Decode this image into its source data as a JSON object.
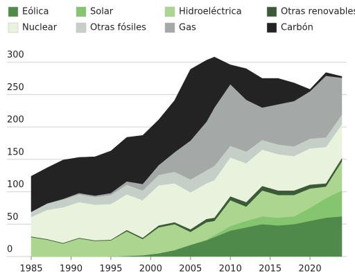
{
  "chart_data": {
    "type": "stacked_area",
    "x": [
      1985,
      1987,
      1989,
      1991,
      1993,
      1995,
      1997,
      1999,
      2001,
      2003,
      2005,
      2007,
      2008,
      2010,
      2012,
      2014,
      2016,
      2018,
      2020,
      2022,
      2024
    ],
    "series": [
      {
        "name": "Eólica",
        "color": "#4f8a4a",
        "values": [
          0,
          0,
          0,
          0,
          0,
          0,
          1,
          2,
          5,
          10,
          18,
          25,
          30,
          40,
          45,
          50,
          48,
          50,
          55,
          60,
          62
        ]
      },
      {
        "name": "Solar",
        "color": "#86c56f",
        "values": [
          0,
          0,
          0,
          0,
          0,
          0,
          0,
          0,
          0,
          0,
          0,
          1,
          3,
          7,
          10,
          12,
          12,
          12,
          20,
          30,
          40
        ]
      },
      {
        "name": "Hidroeléctrica",
        "color": "#acd58f",
        "values": [
          30,
          26,
          20,
          28,
          24,
          25,
          38,
          25,
          40,
          40,
          20,
          27,
          22,
          40,
          22,
          40,
          35,
          33,
          30,
          18,
          45
        ]
      },
      {
        "name": "Otras renovables",
        "color": "#3b5a38",
        "values": [
          1,
          1,
          1,
          1,
          1,
          1,
          2,
          2,
          3,
          3,
          4,
          5,
          5,
          6,
          7,
          7,
          7,
          7,
          6,
          5,
          5
        ]
      },
      {
        "name": "Nuclear",
        "color": "#e9f2dc",
        "values": [
          30,
          45,
          55,
          55,
          55,
          55,
          55,
          58,
          62,
          60,
          57,
          55,
          58,
          60,
          60,
          56,
          56,
          53,
          56,
          56,
          52
        ]
      },
      {
        "name": "Otras fósiles",
        "color": "#c6cec8",
        "values": [
          8,
          10,
          12,
          12,
          12,
          14,
          15,
          15,
          16,
          18,
          20,
          20,
          22,
          18,
          18,
          15,
          15,
          15,
          15,
          15,
          15
        ]
      },
      {
        "name": "Gas",
        "color": "#a4a9a7",
        "values": [
          0,
          0,
          1,
          2,
          2,
          3,
          5,
          10,
          15,
          30,
          60,
          75,
          90,
          95,
          80,
          50,
          62,
          70,
          73,
          95,
          57
        ]
      },
      {
        "name": "Carbón",
        "color": "#232323",
        "values": [
          55,
          55,
          60,
          55,
          60,
          65,
          68,
          75,
          70,
          80,
          110,
          95,
          78,
          30,
          48,
          45,
          40,
          28,
          3,
          5,
          2
        ]
      }
    ],
    "xlim": [
      1985,
      2024
    ],
    "ylim": [
      0,
      320
    ],
    "xticks": [
      1985,
      1990,
      1995,
      2000,
      2005,
      2010,
      2015,
      2020
    ],
    "yticks": [
      0,
      50,
      100,
      150,
      200,
      250,
      300
    ],
    "grid": true
  }
}
